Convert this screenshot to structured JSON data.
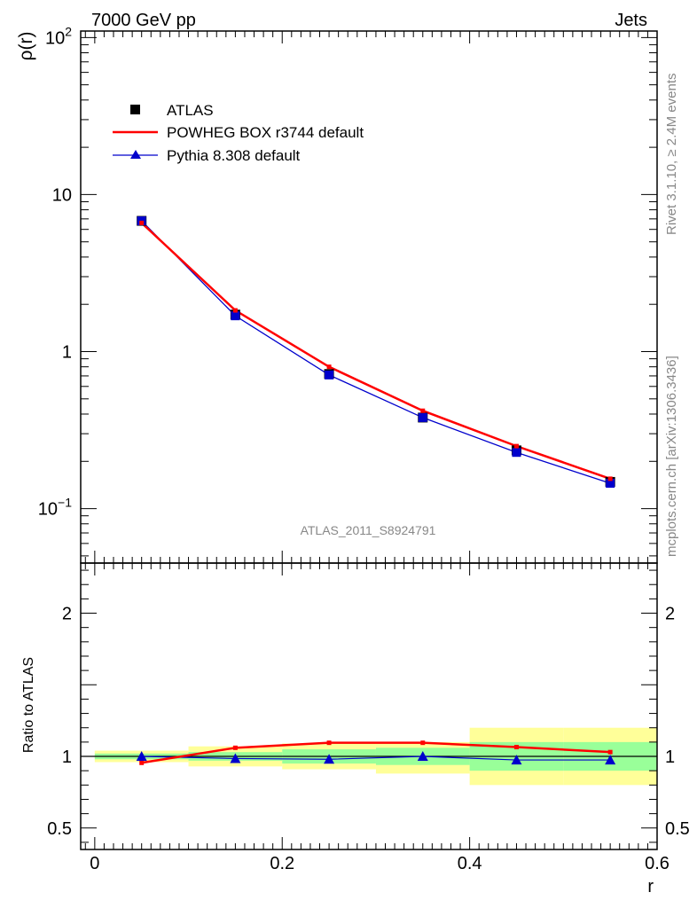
{
  "header": {
    "left": "7000 GeV pp",
    "right": "Jets"
  },
  "side_labels": {
    "rivet": "Rivet 3.1.10, ≥ 2.4M events",
    "mcplots": "mcplots.cern.ch [arXiv:1306.3436]"
  },
  "watermark": "ATLAS_2011_S8924791",
  "colors": {
    "atlas": "#000000",
    "powheg": "#ff0000",
    "pythia": "#0000cc",
    "band_inner": "#99ff99",
    "band_outer": "#ffff99"
  },
  "chart_data": [
    {
      "type": "line",
      "panel": "main",
      "xlabel": "",
      "ylabel": "ρ(r)",
      "xlim": [
        -0.015,
        0.6
      ],
      "ylim": [
        0.045,
        110
      ],
      "log_y": true,
      "y_ticks": [
        {
          "value": 0.1,
          "base": "10",
          "exp": "−1"
        },
        {
          "value": 1,
          "label": "1"
        },
        {
          "value": 10,
          "label": "10"
        },
        {
          "value": 100,
          "base": "10",
          "exp": "2"
        }
      ],
      "legend_position": "top-left",
      "x": [
        0.05,
        0.15,
        0.25,
        0.35,
        0.45,
        0.55
      ],
      "series": [
        {
          "name": "ATLAS",
          "style": "marker-square",
          "values": [
            6.8,
            1.72,
            0.72,
            0.38,
            0.235,
            0.148
          ]
        },
        {
          "name": "POWHEG BOX r3744 default",
          "style": "line",
          "values": [
            6.6,
            1.83,
            0.8,
            0.42,
            0.25,
            0.155
          ]
        },
        {
          "name": "Pythia 8.308 default",
          "style": "line-triangle",
          "values": [
            6.8,
            1.69,
            0.71,
            0.38,
            0.228,
            0.145
          ]
        }
      ]
    },
    {
      "type": "line",
      "panel": "ratio",
      "xlabel": "r",
      "ylabel": "Ratio to ATLAS",
      "xlim": [
        -0.015,
        0.6
      ],
      "ylim": [
        0.35,
        2.35
      ],
      "y_ticks": [
        {
          "value": 0.5,
          "label": "0.5"
        },
        {
          "value": 1,
          "label": "1"
        },
        {
          "value": 2,
          "label": "2"
        }
      ],
      "x_ticks": [
        {
          "value": 0,
          "label": "0"
        },
        {
          "value": 0.2,
          "label": "0.2"
        },
        {
          "value": 0.4,
          "label": "0.4"
        },
        {
          "value": 0.6,
          "label": "0.6"
        }
      ],
      "x": [
        0.05,
        0.15,
        0.25,
        0.35,
        0.45,
        0.55
      ],
      "bands": [
        {
          "x0": 0.0,
          "x1": 0.1,
          "inner": [
            0.98,
            1.02
          ],
          "outer": [
            0.96,
            1.04
          ]
        },
        {
          "x0": 0.1,
          "x1": 0.2,
          "inner": [
            0.97,
            1.03
          ],
          "outer": [
            0.93,
            1.07
          ]
        },
        {
          "x0": 0.2,
          "x1": 0.3,
          "inner": [
            0.95,
            1.05
          ],
          "outer": [
            0.91,
            1.09
          ]
        },
        {
          "x0": 0.3,
          "x1": 0.4,
          "inner": [
            0.94,
            1.06
          ],
          "outer": [
            0.88,
            1.1
          ]
        },
        {
          "x0": 0.4,
          "x1": 0.5,
          "inner": [
            0.9,
            1.1
          ],
          "outer": [
            0.8,
            1.2
          ]
        },
        {
          "x0": 0.5,
          "x1": 0.6,
          "inner": [
            0.9,
            1.1
          ],
          "outer": [
            0.8,
            1.2
          ]
        }
      ],
      "series": [
        {
          "name": "POWHEG BOX r3744 default",
          "style": "line",
          "values": [
            0.955,
            1.06,
            1.095,
            1.095,
            1.065,
            1.03
          ]
        },
        {
          "name": "Pythia 8.308 default",
          "style": "line-triangle",
          "values": [
            1.0,
            0.985,
            0.98,
            1.0,
            0.975,
            0.975
          ]
        }
      ]
    }
  ]
}
